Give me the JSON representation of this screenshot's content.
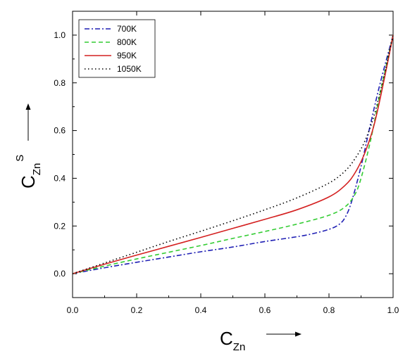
{
  "chart_data": {
    "type": "line",
    "title": "",
    "xlabel": {
      "main": "C",
      "sub": "Zn",
      "sup": ""
    },
    "ylabel": {
      "main": "C",
      "sub": "Zn",
      "sup": "S"
    },
    "xlim": [
      0.0,
      1.0
    ],
    "ylim": [
      -0.1,
      1.1
    ],
    "xticks": [
      "0.0",
      "0.2",
      "0.4",
      "0.6",
      "0.8",
      "1.0"
    ],
    "yticks": [
      "0.0",
      "0.2",
      "0.4",
      "0.6",
      "0.8",
      "1.0"
    ],
    "grid": false,
    "legend_position": "top-left",
    "series": [
      {
        "name": "700K",
        "color": "#1f1fb4",
        "dash": "dashdot",
        "points": [
          [
            0.0,
            0.0
          ],
          [
            0.1,
            0.025
          ],
          [
            0.2,
            0.048
          ],
          [
            0.3,
            0.07
          ],
          [
            0.4,
            0.092
          ],
          [
            0.5,
            0.112
          ],
          [
            0.6,
            0.135
          ],
          [
            0.7,
            0.155
          ],
          [
            0.75,
            0.168
          ],
          [
            0.8,
            0.186
          ],
          [
            0.83,
            0.205
          ],
          [
            0.85,
            0.235
          ],
          [
            0.87,
            0.3
          ],
          [
            0.9,
            0.45
          ],
          [
            0.93,
            0.63
          ],
          [
            0.96,
            0.8
          ],
          [
            1.0,
            1.0
          ]
        ]
      },
      {
        "name": "800K",
        "color": "#33cc33",
        "dash": "dashed",
        "points": [
          [
            0.0,
            0.0
          ],
          [
            0.1,
            0.032
          ],
          [
            0.2,
            0.062
          ],
          [
            0.3,
            0.09
          ],
          [
            0.4,
            0.118
          ],
          [
            0.5,
            0.148
          ],
          [
            0.6,
            0.177
          ],
          [
            0.7,
            0.208
          ],
          [
            0.8,
            0.245
          ],
          [
            0.85,
            0.28
          ],
          [
            0.88,
            0.33
          ],
          [
            0.9,
            0.4
          ],
          [
            0.93,
            0.56
          ],
          [
            0.96,
            0.76
          ],
          [
            1.0,
            1.0
          ]
        ]
      },
      {
        "name": "950K",
        "color": "#d42020",
        "dash": "solid",
        "points": [
          [
            0.0,
            0.0
          ],
          [
            0.1,
            0.04
          ],
          [
            0.2,
            0.078
          ],
          [
            0.3,
            0.115
          ],
          [
            0.4,
            0.152
          ],
          [
            0.5,
            0.19
          ],
          [
            0.6,
            0.228
          ],
          [
            0.7,
            0.268
          ],
          [
            0.8,
            0.322
          ],
          [
            0.85,
            0.37
          ],
          [
            0.88,
            0.42
          ],
          [
            0.91,
            0.5
          ],
          [
            0.94,
            0.62
          ],
          [
            0.97,
            0.8
          ],
          [
            1.0,
            1.0
          ]
        ]
      },
      {
        "name": "1050K",
        "color": "#000000",
        "dash": "dotted",
        "points": [
          [
            0.0,
            0.0
          ],
          [
            0.1,
            0.045
          ],
          [
            0.2,
            0.09
          ],
          [
            0.3,
            0.135
          ],
          [
            0.4,
            0.178
          ],
          [
            0.5,
            0.222
          ],
          [
            0.6,
            0.268
          ],
          [
            0.7,
            0.318
          ],
          [
            0.8,
            0.38
          ],
          [
            0.85,
            0.43
          ],
          [
            0.88,
            0.48
          ],
          [
            0.91,
            0.55
          ],
          [
            0.94,
            0.66
          ],
          [
            0.97,
            0.82
          ],
          [
            1.0,
            1.0
          ]
        ]
      }
    ]
  }
}
